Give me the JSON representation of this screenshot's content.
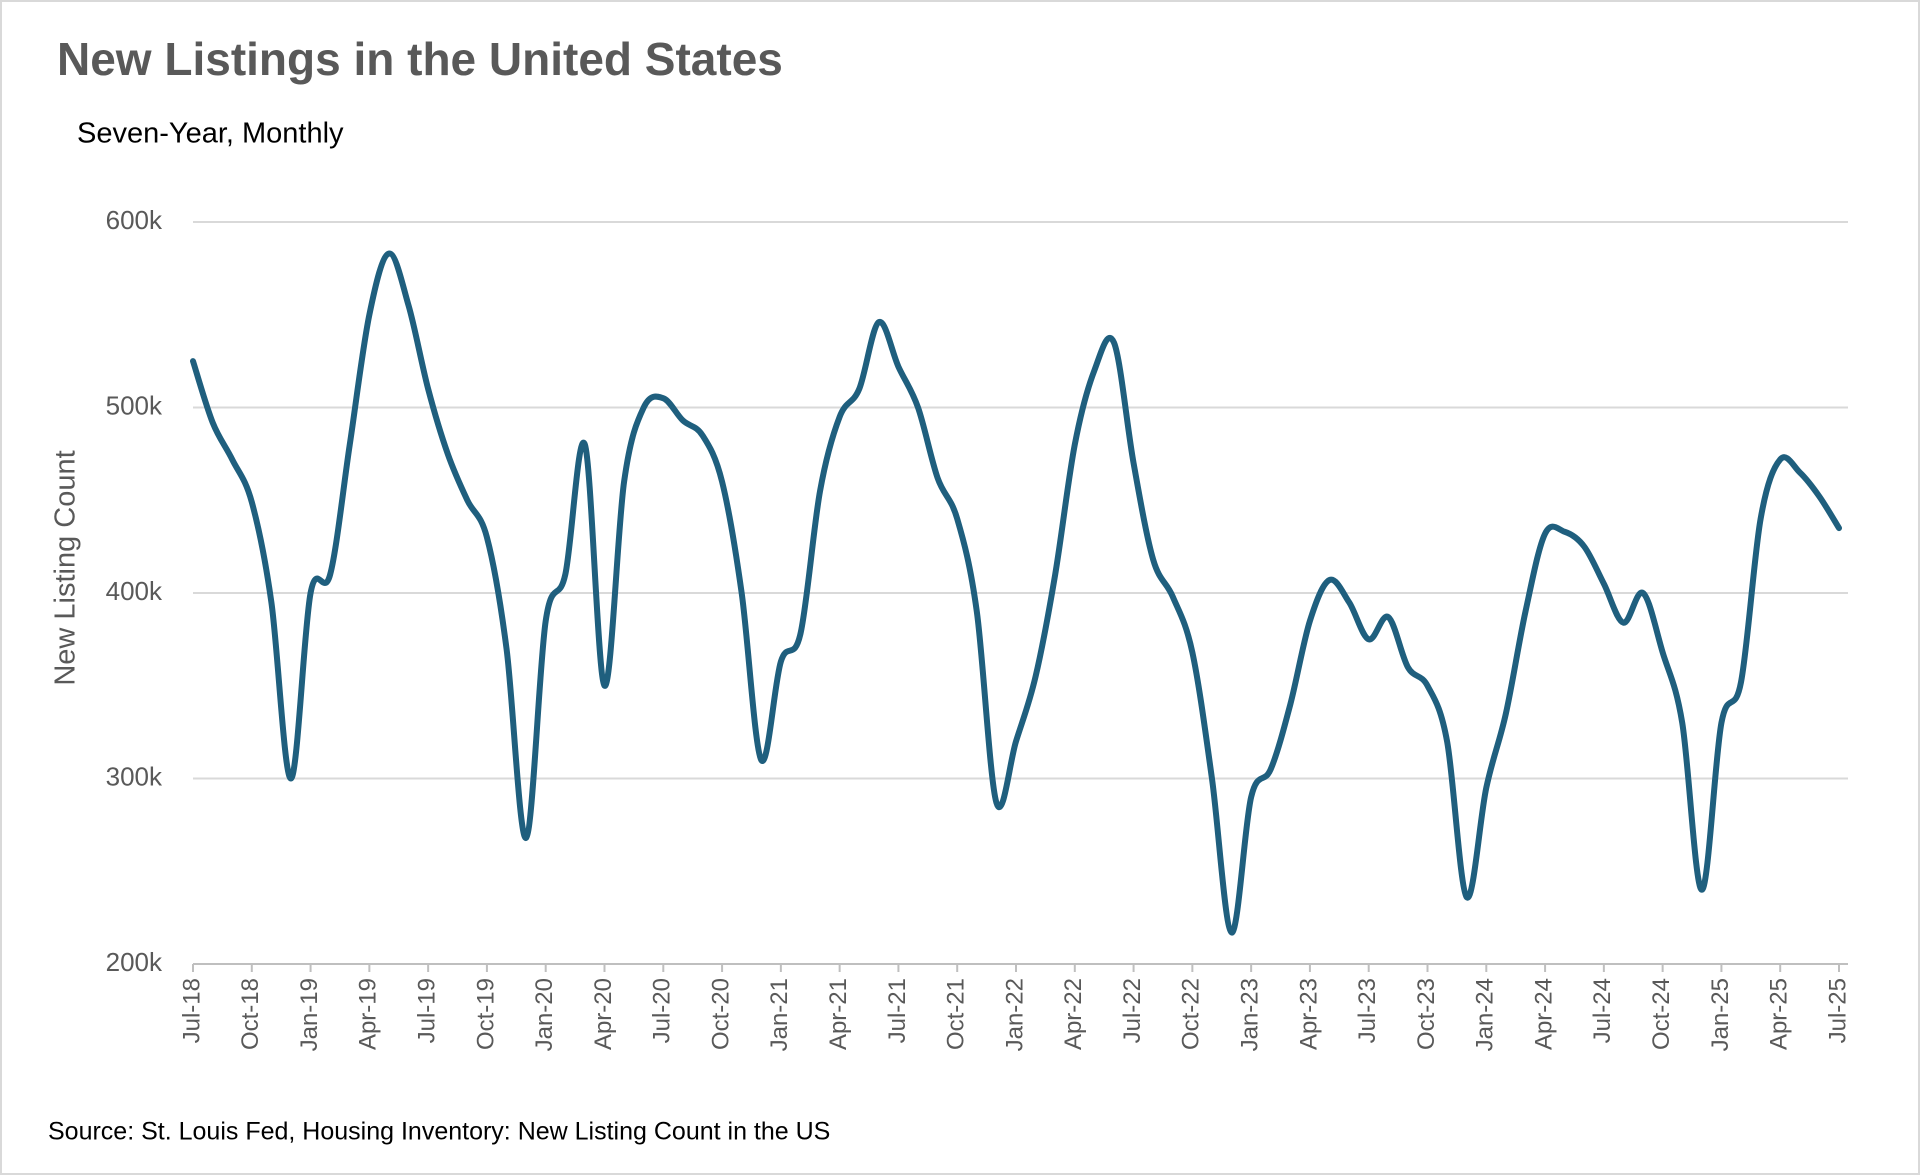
{
  "chart_data": {
    "type": "line",
    "title": "New Listings in the United States",
    "subtitle": "Seven-Year, Monthly",
    "y_label": "New Listing Count",
    "source": "Source: St. Louis Fed, Housing Inventory: New Listing Count in the US",
    "categories": [
      "Jul-18",
      null,
      null,
      "Oct-18",
      null,
      null,
      "Jan-19",
      null,
      null,
      "Apr-19",
      null,
      null,
      "Jul-19",
      null,
      null,
      "Oct-19",
      null,
      null,
      "Jan-20",
      null,
      null,
      "Apr-20",
      null,
      null,
      "Jul-20",
      null,
      null,
      "Oct-20",
      null,
      null,
      "Jan-21",
      null,
      null,
      "Apr-21",
      null,
      null,
      "Jul-21",
      null,
      null,
      "Oct-21",
      null,
      null,
      "Jan-22",
      null,
      null,
      "Apr-22",
      null,
      null,
      "Jul-22",
      null,
      null,
      "Oct-22",
      null,
      null,
      "Jan-23",
      null,
      null,
      "Apr-23",
      null,
      null,
      "Jul-23",
      null,
      null,
      "Oct-23",
      null,
      null,
      "Jan-24",
      null,
      null,
      "Apr-24",
      null,
      null,
      "Jul-24",
      null,
      null,
      "Oct-24",
      null,
      null,
      "Jan-25",
      null,
      null,
      "Apr-25",
      null,
      null,
      "Jul-25"
    ],
    "series": [
      {
        "name": "New Listing Count",
        "color": "#1f5f7e",
        "values": [
          525000,
          492000,
          472000,
          449000,
          395000,
          300000,
          400000,
          410000,
          480000,
          550000,
          583000,
          555000,
          510000,
          475000,
          450000,
          430000,
          370000,
          268000,
          385000,
          410000,
          480000,
          350000,
          460000,
          500000,
          505000,
          493000,
          485000,
          460000,
          400000,
          310000,
          363000,
          378000,
          455000,
          495000,
          510000,
          546000,
          522000,
          500000,
          462000,
          440000,
          390000,
          287000,
          320000,
          355000,
          410000,
          480000,
          520000,
          535000,
          470000,
          418000,
          398000,
          368000,
          300000,
          217000,
          290000,
          305000,
          340000,
          385000,
          407000,
          395000,
          375000,
          387000,
          360000,
          350000,
          320000,
          236000,
          295000,
          335000,
          390000,
          432000,
          433000,
          425000,
          405000,
          384000,
          400000,
          368000,
          330000,
          240000,
          330000,
          352000,
          440000,
          472000,
          465000,
          452000,
          435000
        ]
      }
    ],
    "ylim": [
      200000,
      600000
    ],
    "yticks": [
      {
        "value": 200000,
        "label": "200k"
      },
      {
        "value": 300000,
        "label": "300k"
      },
      {
        "value": 400000,
        "label": "400k"
      },
      {
        "value": 500000,
        "label": "500k"
      },
      {
        "value": 600000,
        "label": "600k"
      }
    ],
    "grid": true
  }
}
